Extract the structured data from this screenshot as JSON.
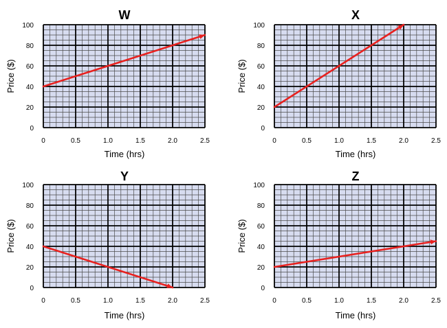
{
  "chart_data": [
    {
      "type": "line",
      "title": "W",
      "xlabel": "Time (hrs)",
      "ylabel": "Price ($)",
      "xlim": [
        0,
        2.5
      ],
      "ylim": [
        0,
        100
      ],
      "x_ticks": [
        "0",
        "0.5",
        "1.0",
        "1.5",
        "2.0",
        "2.5"
      ],
      "y_ticks": [
        "0",
        "20",
        "40",
        "60",
        "80",
        "100"
      ],
      "grid": true,
      "series": [
        {
          "name": "W",
          "color": "#e8211f",
          "x": [
            0,
            2.5
          ],
          "y": [
            40,
            90
          ]
        }
      ]
    },
    {
      "type": "line",
      "title": "X",
      "xlabel": "Time (hrs)",
      "ylabel": "Price ($)",
      "xlim": [
        0,
        2.5
      ],
      "ylim": [
        0,
        100
      ],
      "x_ticks": [
        "0",
        "0.5",
        "1.0",
        "1.5",
        "2.0",
        "2.5"
      ],
      "y_ticks": [
        "0",
        "20",
        "40",
        "60",
        "80",
        "100"
      ],
      "grid": true,
      "series": [
        {
          "name": "X",
          "color": "#e8211f",
          "x": [
            0,
            2.0
          ],
          "y": [
            20,
            100
          ]
        }
      ]
    },
    {
      "type": "line",
      "title": "Y",
      "xlabel": "Time (hrs)",
      "ylabel": "Price ($)",
      "xlim": [
        0,
        2.5
      ],
      "ylim": [
        0,
        100
      ],
      "x_ticks": [
        "0",
        "0.5",
        "1.0",
        "1.5",
        "2.0",
        "2.5"
      ],
      "y_ticks": [
        "0",
        "20",
        "40",
        "60",
        "80",
        "100"
      ],
      "grid": true,
      "series": [
        {
          "name": "Y",
          "color": "#e8211f",
          "x": [
            0,
            2.0
          ],
          "y": [
            40,
            0
          ]
        }
      ]
    },
    {
      "type": "line",
      "title": "Z",
      "xlabel": "Time (hrs)",
      "ylabel": "Price ($)",
      "xlim": [
        0,
        2.5
      ],
      "ylim": [
        0,
        100
      ],
      "x_ticks": [
        "0",
        "0.5",
        "1.0",
        "1.5",
        "2.0",
        "2.5"
      ],
      "y_ticks": [
        "0",
        "20",
        "40",
        "60",
        "80",
        "100"
      ],
      "grid": true,
      "series": [
        {
          "name": "Z",
          "color": "#e8211f",
          "x": [
            0,
            2.5
          ],
          "y": [
            20,
            45
          ]
        }
      ]
    }
  ],
  "colors": {
    "plot_background": "#d7dcf0",
    "minor_grid": "#4a4a4a",
    "major_grid": "#000000",
    "line": "#e8211f"
  }
}
